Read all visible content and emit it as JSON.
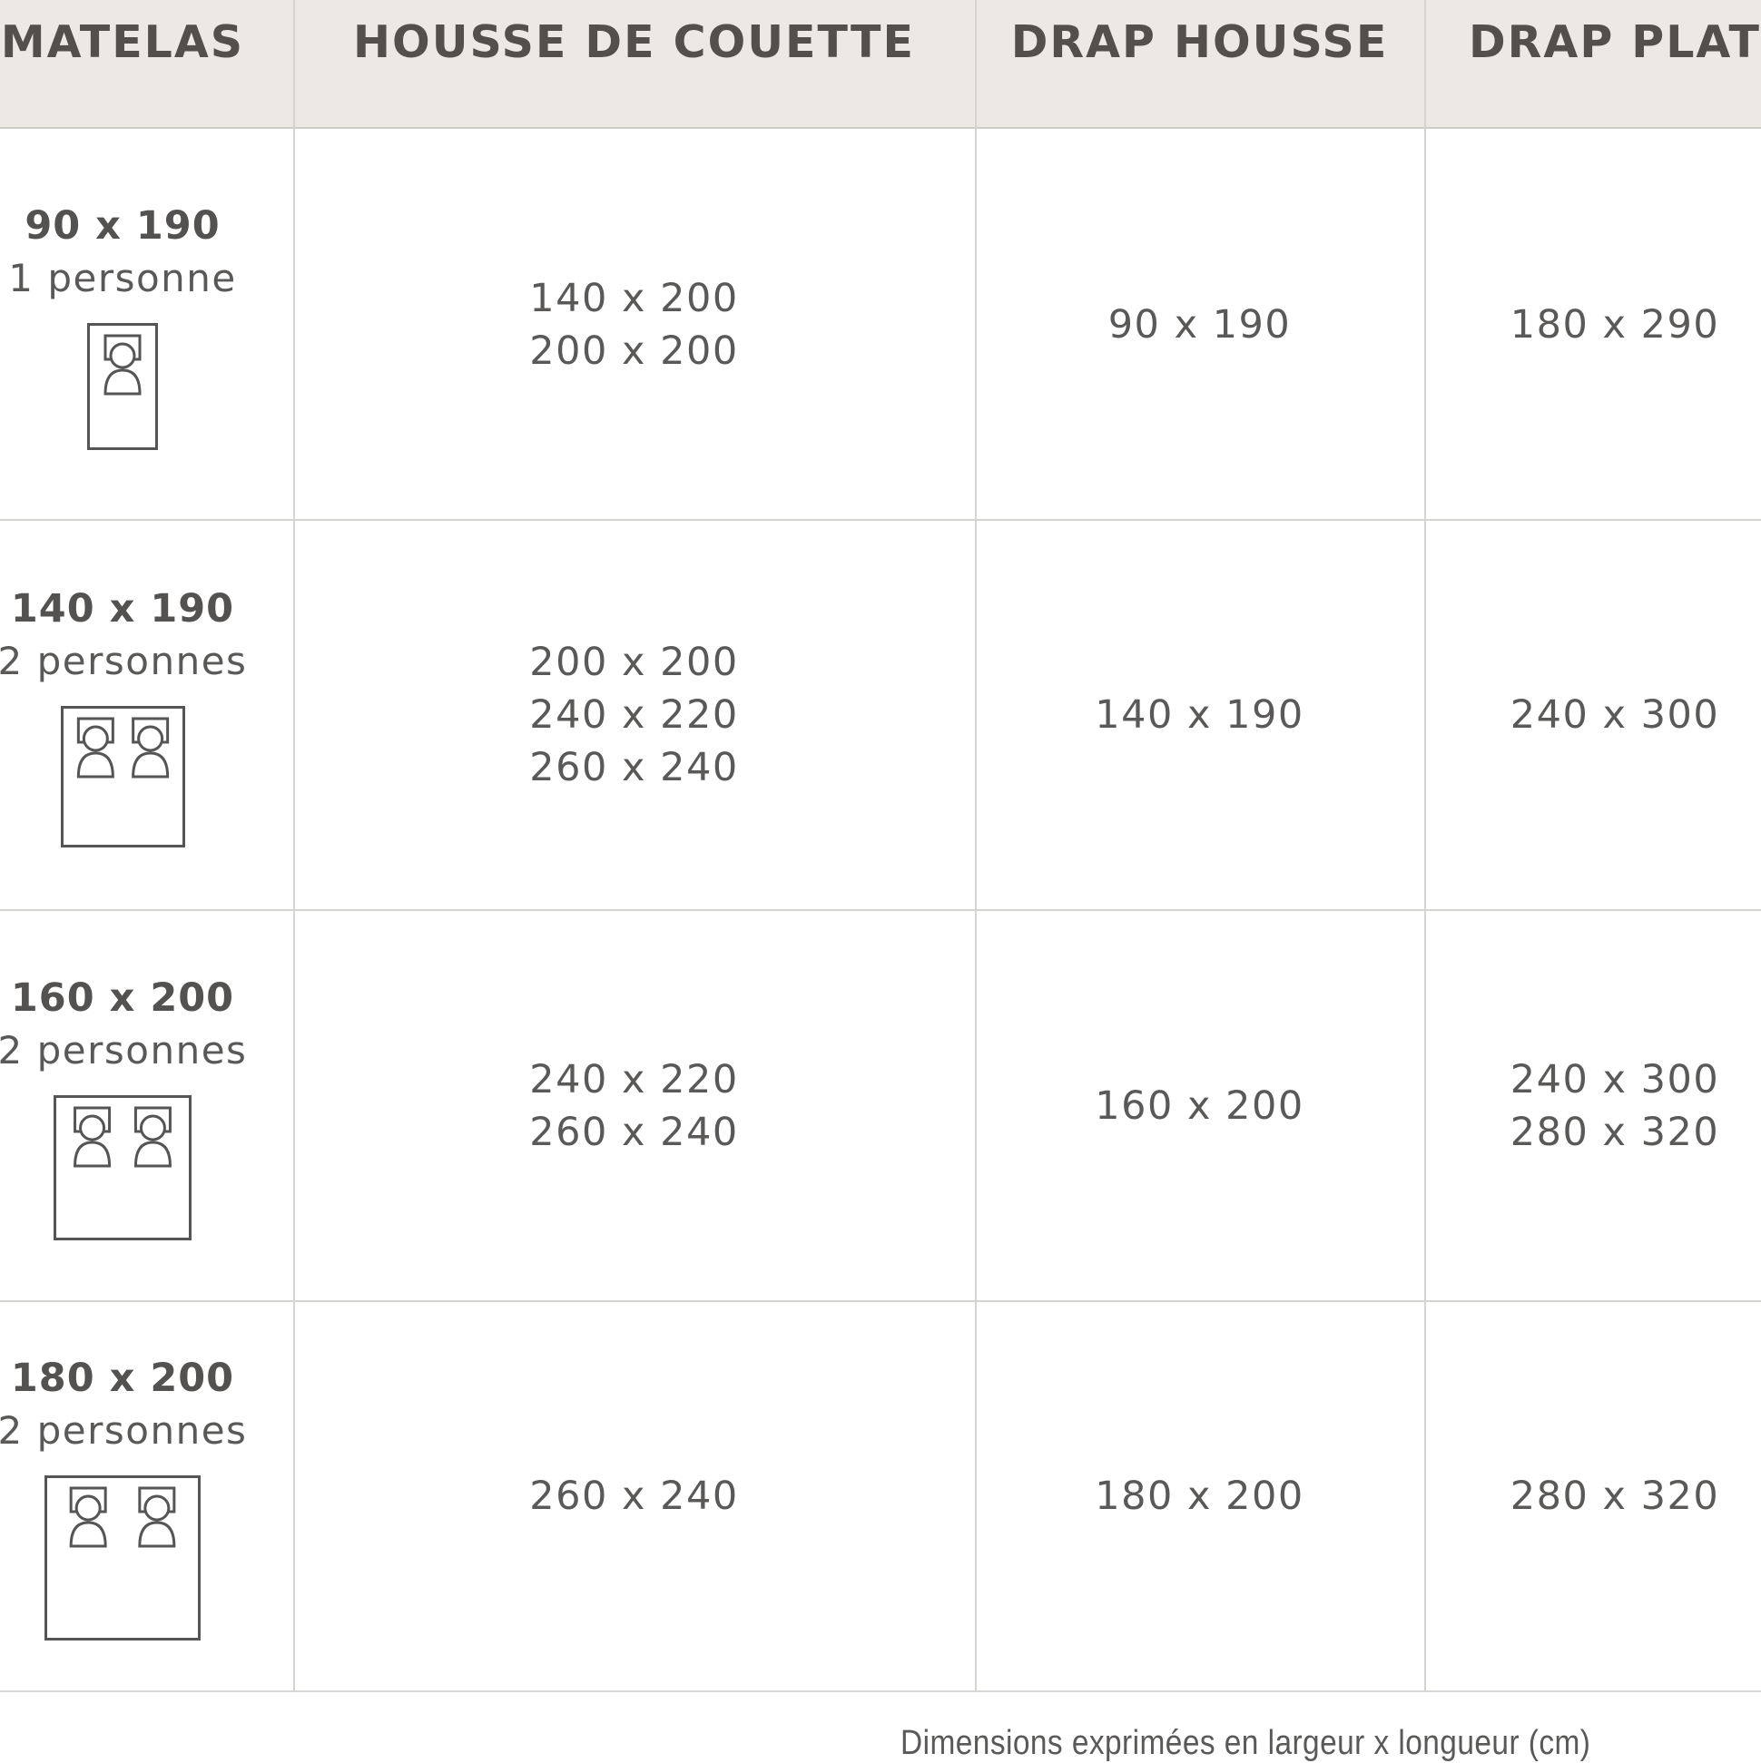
{
  "headers": [
    "MATELAS",
    "HOUSSE DE COUETTE",
    "DRAP HOUSSE",
    "DRAP PLAT"
  ],
  "rows": [
    {
      "matelas_size": "90 x 190",
      "matelas_persons": "1 personne",
      "icon": "single-bed-icon",
      "housse": [
        "140 x 200",
        "200 x 200"
      ],
      "drap_housse": [
        "90 x 190"
      ],
      "drap_plat": [
        "180 x 290"
      ]
    },
    {
      "matelas_size": "140 x 190",
      "matelas_persons": "2 personnes",
      "icon": "double-bed-icon",
      "housse": [
        "200 x 200",
        "240 x 220",
        "260 x 240"
      ],
      "drap_housse": [
        "140 x 190"
      ],
      "drap_plat": [
        "240 x 300"
      ]
    },
    {
      "matelas_size": "160 x 200",
      "matelas_persons": "2 personnes",
      "icon": "queen-bed-icon",
      "housse": [
        "240 x 220",
        "260 x 240"
      ],
      "drap_housse": [
        "160 x 200"
      ],
      "drap_plat": [
        "240 x 300",
        "280 x 320"
      ]
    },
    {
      "matelas_size": "180 x 200",
      "matelas_persons": "2 personnes",
      "icon": "king-bed-icon",
      "housse": [
        "260 x 240"
      ],
      "drap_housse": [
        "180 x 200"
      ],
      "drap_plat": [
        "280 x 320"
      ]
    }
  ],
  "footer": "Dimensions exprimées en largeur x longueur (cm)",
  "colors": {
    "header_bg": "#ece8e3",
    "text": "#555453",
    "grid": "#d6d3d0"
  }
}
